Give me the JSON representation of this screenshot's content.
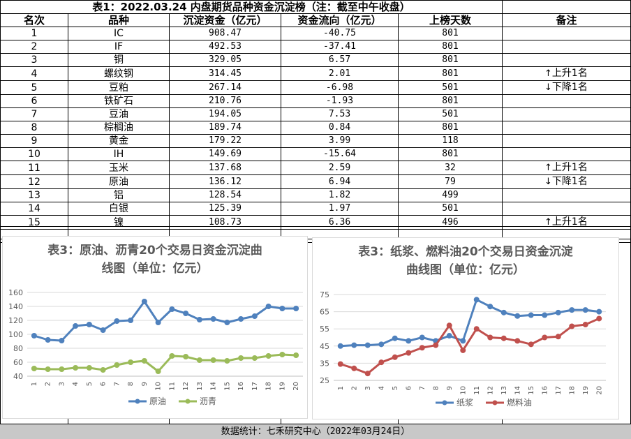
{
  "table": {
    "title": "表1：2022.03.24 内盘期货品种资金沉淀榜（注：截至中午收盘）",
    "headers": [
      "名次",
      "品种",
      "沉淀资金（亿元）",
      "资金流向（亿元）",
      "上榜天数",
      "备注"
    ],
    "rows": [
      {
        "rank": "1",
        "name": "IC",
        "fund": "908.47",
        "flow": "-40.75",
        "days": "801",
        "arrow": "",
        "note": ""
      },
      {
        "rank": "2",
        "name": "IF",
        "fund": "492.53",
        "flow": "-37.41",
        "days": "801",
        "arrow": "",
        "note": ""
      },
      {
        "rank": "3",
        "name": "铜",
        "fund": "329.05",
        "flow": "6.57",
        "days": "801",
        "arrow": "",
        "note": ""
      },
      {
        "rank": "4",
        "name": "螺纹钢",
        "fund": "314.45",
        "flow": "2.01",
        "days": "801",
        "arrow": "↑",
        "note": "上升1名"
      },
      {
        "rank": "5",
        "name": "豆粕",
        "fund": "267.14",
        "flow": "-6.98",
        "days": "501",
        "arrow": "↓",
        "note": "下降1名"
      },
      {
        "rank": "6",
        "name": "铁矿石",
        "fund": "210.76",
        "flow": "-1.93",
        "days": "801",
        "arrow": "",
        "note": ""
      },
      {
        "rank": "7",
        "name": "豆油",
        "fund": "194.05",
        "flow": "7.53",
        "days": "501",
        "arrow": "",
        "note": ""
      },
      {
        "rank": "8",
        "name": "棕榈油",
        "fund": "189.74",
        "flow": "0.84",
        "days": "801",
        "arrow": "",
        "note": ""
      },
      {
        "rank": "9",
        "name": "黄金",
        "fund": "179.22",
        "flow": "3.99",
        "days": "118",
        "arrow": "",
        "note": ""
      },
      {
        "rank": "10",
        "name": "IH",
        "fund": "149.69",
        "flow": "-15.64",
        "days": "801",
        "arrow": "",
        "note": ""
      },
      {
        "rank": "11",
        "name": "玉米",
        "fund": "137.68",
        "flow": "2.59",
        "days": "32",
        "arrow": "↑",
        "note": "上升1名"
      },
      {
        "rank": "12",
        "name": "原油",
        "fund": "136.12",
        "flow": "6.94",
        "days": "79",
        "arrow": "↓",
        "note": "下降1名"
      },
      {
        "rank": "13",
        "name": "铝",
        "fund": "128.54",
        "flow": "1.82",
        "days": "499",
        "arrow": "",
        "note": ""
      },
      {
        "rank": "14",
        "name": "白银",
        "fund": "125.39",
        "flow": "1.97",
        "days": "501",
        "arrow": "",
        "note": ""
      },
      {
        "rank": "15",
        "name": "镍",
        "fund": "108.73",
        "flow": "6.36",
        "days": "496",
        "arrow": "↑",
        "note": "上升1名"
      }
    ]
  },
  "footer": "数据统计：七禾研究中心（2022年03月24日）",
  "chart_data": [
    {
      "type": "line",
      "title": "表3：原油、沥青20个交易日资金沉淀曲线图（单位：亿元）",
      "title_lines": [
        "表3：原油、沥青20个交易日资金沉淀曲",
        "线图（单位：亿元）"
      ],
      "x": [
        "1",
        "2",
        "3",
        "4",
        "5",
        "6",
        "7",
        "8",
        "9",
        "10",
        "11",
        "12",
        "13",
        "14",
        "15",
        "16",
        "17",
        "18",
        "19",
        "20"
      ],
      "ylim": [
        40,
        160
      ],
      "yticks": [
        40,
        60,
        80,
        100,
        120,
        140,
        160
      ],
      "grid": true,
      "legend": "bottom",
      "series": [
        {
          "name": "原油",
          "color": "#4f81bd",
          "values": [
            98,
            92,
            91,
            112,
            114,
            106,
            119,
            120,
            147,
            117,
            136,
            130,
            121,
            122,
            117,
            122,
            126,
            140,
            137,
            137
          ]
        },
        {
          "name": "沥青",
          "color": "#9bbb59",
          "values": [
            51,
            50,
            50,
            52,
            52,
            49,
            56,
            60,
            62,
            47,
            69,
            68,
            63,
            63,
            62,
            66,
            66,
            69,
            71,
            70
          ]
        }
      ]
    },
    {
      "type": "line",
      "title": "表3：纸浆、燃料油20个交易日资金沉淀曲线图（单位：亿元）",
      "title_lines": [
        "表3：纸浆、燃料油20个交易日资金沉淀",
        "曲线图（单位：亿元）"
      ],
      "x": [
        "1",
        "2",
        "3",
        "4",
        "5",
        "6",
        "7",
        "8",
        "9",
        "10",
        "11",
        "12",
        "13",
        "14",
        "15",
        "16",
        "17",
        "18",
        "19",
        "20"
      ],
      "ylim": [
        25,
        75
      ],
      "yticks": [
        25,
        35,
        45,
        55,
        65,
        75
      ],
      "grid": true,
      "legend": "bottom",
      "series": [
        {
          "name": "纸浆",
          "color": "#4f81bd",
          "values": [
            45,
            45.5,
            45.5,
            46,
            49.5,
            48,
            50,
            48,
            51,
            48,
            72,
            68,
            64.5,
            62.5,
            63,
            63,
            64.5,
            66,
            66,
            65
          ]
        },
        {
          "name": "燃料油",
          "color": "#c0504d",
          "values": [
            34.5,
            32,
            29,
            35.5,
            38.5,
            41,
            44,
            45.5,
            57,
            42.5,
            55,
            50,
            49.5,
            48,
            46,
            50,
            50.5,
            56.5,
            57.5,
            61
          ]
        }
      ]
    }
  ]
}
